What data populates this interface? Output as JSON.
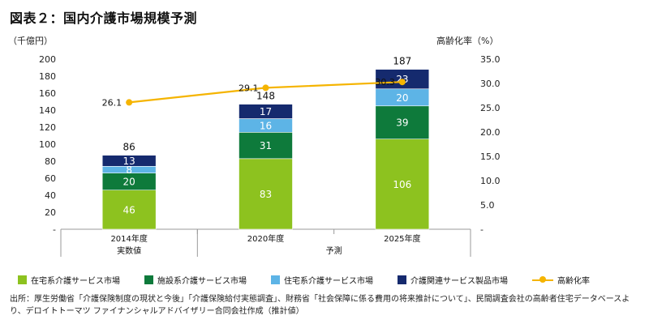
{
  "title": "図表２：国内介護市場規模予測",
  "chart_data": {
    "type": "bar",
    "stacked": true,
    "categories": [
      "2014年度",
      "2020年度",
      "2025年度"
    ],
    "group_labels": [
      {
        "text": "実数値",
        "categories": [
          "2014年度"
        ]
      },
      {
        "text": "予測",
        "categories": [
          "2020年度",
          "2025年度"
        ]
      }
    ],
    "series": [
      {
        "name": "在宅系介護サービス市場",
        "values": [
          46,
          83,
          106
        ],
        "color": "#8DC21F"
      },
      {
        "name": "施設系介護サービス市場",
        "values": [
          20,
          31,
          39
        ],
        "color": "#0E7A3B"
      },
      {
        "name": "住宅系介護サービス市場",
        "values": [
          8,
          16,
          20
        ],
        "color": "#5DB4E6"
      },
      {
        "name": "介護関連サービス製品市場",
        "values": [
          13,
          17,
          23
        ],
        "color": "#152A6E"
      }
    ],
    "totals": [
      86,
      148,
      187
    ],
    "line_series": {
      "name": "高齢化率",
      "values": [
        26.1,
        29.1,
        30.3
      ],
      "color": "#F5B400",
      "axis": "right"
    },
    "ylabel": "（千億円）",
    "ylabel_right": "高齢化率（%）",
    "ylim": [
      0,
      200
    ],
    "yticks": [
      "-",
      "20",
      "40",
      "60",
      "80",
      "100",
      "120",
      "140",
      "160",
      "180",
      "200"
    ],
    "ylim_right": [
      0,
      35
    ],
    "yticks_right": [
      "-",
      "5.0",
      "10.0",
      "15.0",
      "20.0",
      "25.0",
      "30.0",
      "35.0"
    ],
    "grid": false,
    "legend_position": "bottom"
  },
  "source": "出所：厚生労働省「介護保険制度の現状と今後」「介護保険給付実態調査」、財務省「社会保障に係る費用の将来推計について」、民間調査会社の高齢者住宅データベースより、デロイトトーマツ ファイナンシャルアドバイザリー合同会社作成（推計値）"
}
